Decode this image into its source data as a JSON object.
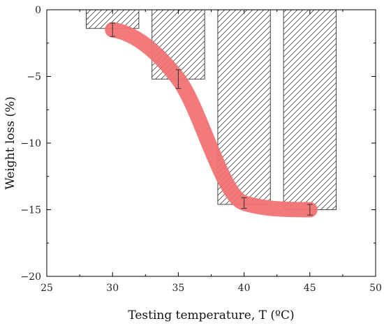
{
  "chart_data": {
    "type": "bar",
    "xlabel": "Testing temperature, T (ºC)",
    "ylabel": "Weight loss (%)",
    "xlim": [
      25,
      50
    ],
    "ylim": [
      -20,
      0
    ],
    "xticks": [
      25,
      30,
      35,
      40,
      45,
      50
    ],
    "yticks": [
      0,
      -5,
      -10,
      -15,
      -20
    ],
    "grid": false,
    "series": [
      {
        "type": "bar",
        "pattern": "diagonal-hatch",
        "x": [
          30,
          35,
          40,
          45
        ],
        "values": [
          -1.4,
          -5.2,
          -14.6,
          -15.0
        ],
        "bar_width": 4
      },
      {
        "type": "line",
        "color": "#f27373",
        "x": [
          30,
          35,
          40,
          45
        ],
        "values": [
          -1.5,
          -5.2,
          -14.5,
          -15.0
        ],
        "error": [
          0.5,
          0.7,
          0.4,
          0.4
        ]
      }
    ]
  }
}
